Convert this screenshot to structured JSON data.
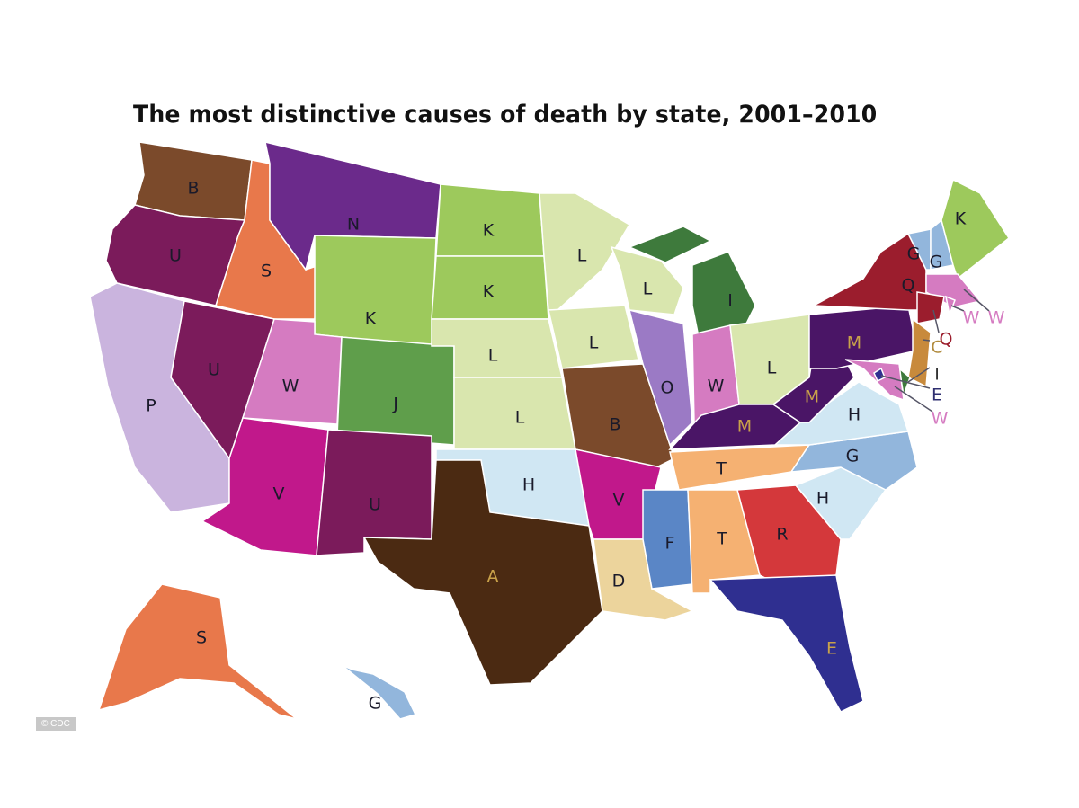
{
  "title": "The most distinctive causes of death by state, 2001–2010",
  "credit": "© CDC",
  "cause_colors": {
    "A": "#4b2a12",
    "B": "#7b4a2b",
    "C": "#c88a3c",
    "D": "#ecd49c",
    "E": "#2f2f90",
    "F": "#5a86c6",
    "G": "#92b6dc",
    "H": "#d0e7f3",
    "I": "#3e7a3c",
    "J": "#5f9e4b",
    "K": "#9dc95c",
    "L": "#d9e6ae",
    "M": "#4a1566",
    "N": "#6b2a8b",
    "O": "#9b7ac5",
    "P": "#cab4de",
    "Q": "#9b1d2d",
    "R": "#d4383b",
    "S": "#e8784b",
    "T": "#f5b172",
    "U": "#7b1b5b",
    "V": "#c1188b",
    "W": "#d57bc1"
  },
  "states": [
    {
      "id": "WA",
      "cause": "B"
    },
    {
      "id": "OR",
      "cause": "U"
    },
    {
      "id": "CA",
      "cause": "P"
    },
    {
      "id": "NV",
      "cause": "U"
    },
    {
      "id": "ID",
      "cause": "S"
    },
    {
      "id": "MT",
      "cause": "N"
    },
    {
      "id": "WY",
      "cause": "K"
    },
    {
      "id": "UT",
      "cause": "W"
    },
    {
      "id": "CO",
      "cause": "J"
    },
    {
      "id": "AZ",
      "cause": "V"
    },
    {
      "id": "NM",
      "cause": "U"
    },
    {
      "id": "ND",
      "cause": "K"
    },
    {
      "id": "SD",
      "cause": "K"
    },
    {
      "id": "NE",
      "cause": "L"
    },
    {
      "id": "KS",
      "cause": "L"
    },
    {
      "id": "OK",
      "cause": "H"
    },
    {
      "id": "TX",
      "cause": "A"
    },
    {
      "id": "MN",
      "cause": "L"
    },
    {
      "id": "IA",
      "cause": "L"
    },
    {
      "id": "MO",
      "cause": "B"
    },
    {
      "id": "AR",
      "cause": "V"
    },
    {
      "id": "LA",
      "cause": "D"
    },
    {
      "id": "WI",
      "cause": "L"
    },
    {
      "id": "IL",
      "cause": "O"
    },
    {
      "id": "MI",
      "cause": "I"
    },
    {
      "id": "IN",
      "cause": "W"
    },
    {
      "id": "OH",
      "cause": "L"
    },
    {
      "id": "KY",
      "cause": "M"
    },
    {
      "id": "TN",
      "cause": "T"
    },
    {
      "id": "MS",
      "cause": "F"
    },
    {
      "id": "AL",
      "cause": "T"
    },
    {
      "id": "GA",
      "cause": "R"
    },
    {
      "id": "FL",
      "cause": "E"
    },
    {
      "id": "SC",
      "cause": "H"
    },
    {
      "id": "NC",
      "cause": "G"
    },
    {
      "id": "VA",
      "cause": "H"
    },
    {
      "id": "WV",
      "cause": "M"
    },
    {
      "id": "PA",
      "cause": "M"
    },
    {
      "id": "NY",
      "cause": "Q"
    },
    {
      "id": "VT",
      "cause": "G"
    },
    {
      "id": "NH",
      "cause": "G"
    },
    {
      "id": "ME",
      "cause": "K"
    },
    {
      "id": "MA",
      "cause": "W"
    },
    {
      "id": "RI",
      "cause": "W"
    },
    {
      "id": "CT",
      "cause": "Q"
    },
    {
      "id": "NJ",
      "cause": "C"
    },
    {
      "id": "DE",
      "cause": "I"
    },
    {
      "id": "MD",
      "cause": "W"
    },
    {
      "id": "DC",
      "cause": "E"
    },
    {
      "id": "AK",
      "cause": "S"
    },
    {
      "id": "HI",
      "cause": "G"
    }
  ]
}
